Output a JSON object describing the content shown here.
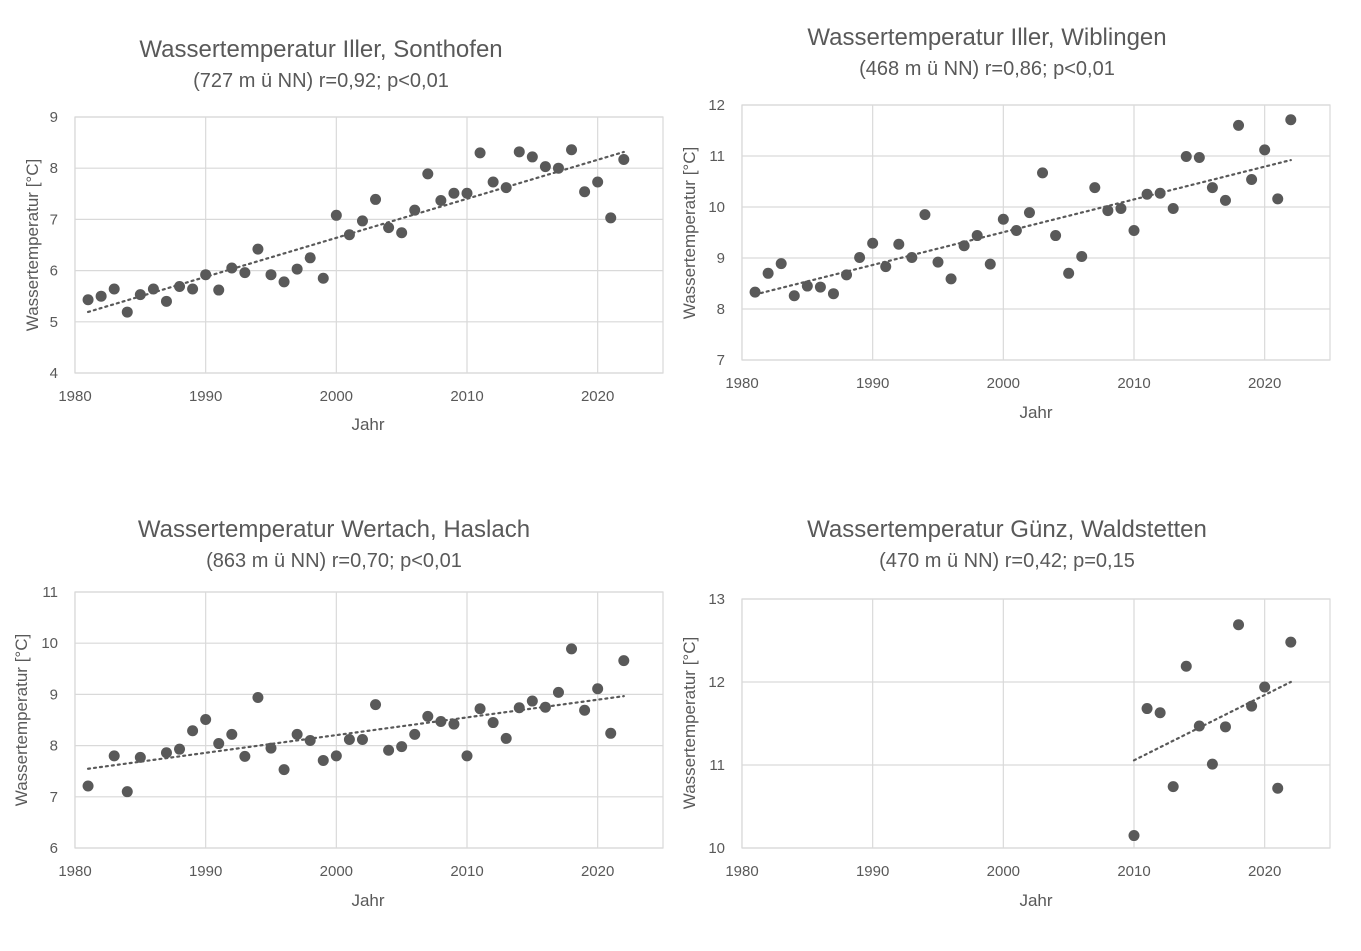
{
  "chart_data": [
    {
      "type": "scatter",
      "title": "Wassertemperatur Iller, Sonthofen",
      "subtitle": "(727 m ü NN) r=0,92; p<0,01",
      "xlabel": "Jahr",
      "ylabel": "Wassertemperatur [°C]",
      "xlim": [
        1980,
        2025
      ],
      "ylim": [
        4,
        9
      ],
      "xticks": [
        1980,
        1990,
        2000,
        2010,
        2020
      ],
      "yticks": [
        4,
        5,
        6,
        7,
        8,
        9
      ],
      "grid": true,
      "trendline": "linear, dotted",
      "x": [
        1981,
        1982,
        1983,
        1984,
        1985,
        1986,
        1987,
        1988,
        1989,
        1990,
        1991,
        1992,
        1993,
        1994,
        1995,
        1996,
        1997,
        1998,
        1999,
        2000,
        2001,
        2002,
        2003,
        2004,
        2005,
        2006,
        2007,
        2008,
        2009,
        2010,
        2011,
        2012,
        2013,
        2014,
        2015,
        2016,
        2017,
        2018,
        2019,
        2020,
        2021,
        2022
      ],
      "y": [
        5.43,
        5.5,
        5.64,
        5.19,
        5.53,
        5.64,
        5.4,
        5.69,
        5.64,
        5.92,
        5.62,
        6.05,
        5.96,
        6.42,
        5.92,
        5.78,
        6.03,
        6.25,
        5.85,
        7.08,
        6.7,
        6.97,
        7.39,
        6.84,
        6.74,
        7.18,
        7.89,
        7.37,
        7.51,
        7.51,
        8.3,
        7.73,
        7.62,
        8.32,
        8.22,
        8.03,
        8.0,
        8.36,
        7.54,
        7.73,
        7.03,
        8.17
      ]
    },
    {
      "type": "scatter",
      "title": "Wassertemperatur Iller, Wiblingen",
      "subtitle": "(468 m ü NN) r=0,86; p<0,01",
      "xlabel": "Jahr",
      "ylabel": "Wassertemperatur [°C]",
      "xlim": [
        1980,
        2025
      ],
      "ylim": [
        7,
        12
      ],
      "xticks": [
        1980,
        1990,
        2000,
        2010,
        2020
      ],
      "yticks": [
        7,
        8,
        9,
        10,
        11,
        12
      ],
      "grid": true,
      "trendline": "linear, dotted",
      "x": [
        1981,
        1982,
        1983,
        1984,
        1985,
        1986,
        1987,
        1988,
        1989,
        1990,
        1991,
        1992,
        1993,
        1994,
        1995,
        1996,
        1997,
        1998,
        1999,
        2000,
        2001,
        2002,
        2003,
        2004,
        2005,
        2006,
        2007,
        2008,
        2009,
        2010,
        2011,
        2012,
        2013,
        2014,
        2015,
        2016,
        2017,
        2018,
        2019,
        2020,
        2021,
        2022
      ],
      "y": [
        8.33,
        8.7,
        8.89,
        8.26,
        8.45,
        8.43,
        8.3,
        8.67,
        9.01,
        9.29,
        8.83,
        9.27,
        9.01,
        9.85,
        8.92,
        8.59,
        9.24,
        9.44,
        8.88,
        9.76,
        9.54,
        9.89,
        10.67,
        9.44,
        8.7,
        9.03,
        10.38,
        9.93,
        9.97,
        9.54,
        10.25,
        10.27,
        9.97,
        10.99,
        10.97,
        10.38,
        10.13,
        11.6,
        10.54,
        11.12,
        10.16,
        11.71
      ]
    },
    {
      "type": "scatter",
      "title": "Wassertemperatur Wertach, Haslach",
      "subtitle": "(863 m ü NN) r=0,70; p<0,01",
      "xlabel": "Jahr",
      "ylabel": "Wassertemperatur [°C]",
      "xlim": [
        1980,
        2025
      ],
      "ylim": [
        6,
        11
      ],
      "xticks": [
        1980,
        1990,
        2000,
        2010,
        2020
      ],
      "yticks": [
        6,
        7,
        8,
        9,
        10,
        11
      ],
      "grid": true,
      "trendline": "linear, dotted",
      "x": [
        1981,
        1983,
        1984,
        1985,
        1987,
        1988,
        1989,
        1990,
        1991,
        1992,
        1993,
        1994,
        1995,
        1996,
        1997,
        1998,
        1999,
        2000,
        2001,
        2002,
        2003,
        2004,
        2005,
        2006,
        2007,
        2008,
        2009,
        2010,
        2011,
        2012,
        2013,
        2014,
        2015,
        2016,
        2017,
        2018,
        2019,
        2020,
        2021,
        2022
      ],
      "y": [
        7.21,
        7.8,
        7.1,
        7.77,
        7.86,
        7.93,
        8.29,
        8.51,
        8.04,
        8.22,
        7.79,
        8.94,
        7.95,
        7.53,
        8.22,
        8.1,
        7.71,
        7.8,
        8.12,
        8.12,
        8.8,
        7.91,
        7.98,
        8.22,
        8.57,
        8.47,
        8.42,
        7.8,
        8.72,
        8.45,
        8.14,
        8.74,
        8.87,
        8.75,
        9.04,
        9.89,
        8.69,
        9.11,
        8.24,
        9.66
      ]
    },
    {
      "type": "scatter",
      "title": "Wassertemperatur Günz, Waldstetten",
      "subtitle": "(470 m ü NN) r=0,42; p=0,15",
      "xlabel": "Jahr",
      "ylabel": "Wassertemperatur [°C]",
      "xlim": [
        1980,
        2025
      ],
      "ylim": [
        10,
        13
      ],
      "xticks": [
        1980,
        1990,
        2000,
        2010,
        2020
      ],
      "yticks": [
        10,
        11,
        12,
        13
      ],
      "grid": true,
      "trendline": "linear, dotted",
      "x": [
        2010,
        2011,
        2012,
        2013,
        2014,
        2015,
        2016,
        2017,
        2018,
        2019,
        2020,
        2021,
        2022
      ],
      "y": [
        10.15,
        11.68,
        11.63,
        10.74,
        12.19,
        11.47,
        11.01,
        11.46,
        12.69,
        11.71,
        11.94,
        10.72,
        12.48
      ]
    }
  ]
}
